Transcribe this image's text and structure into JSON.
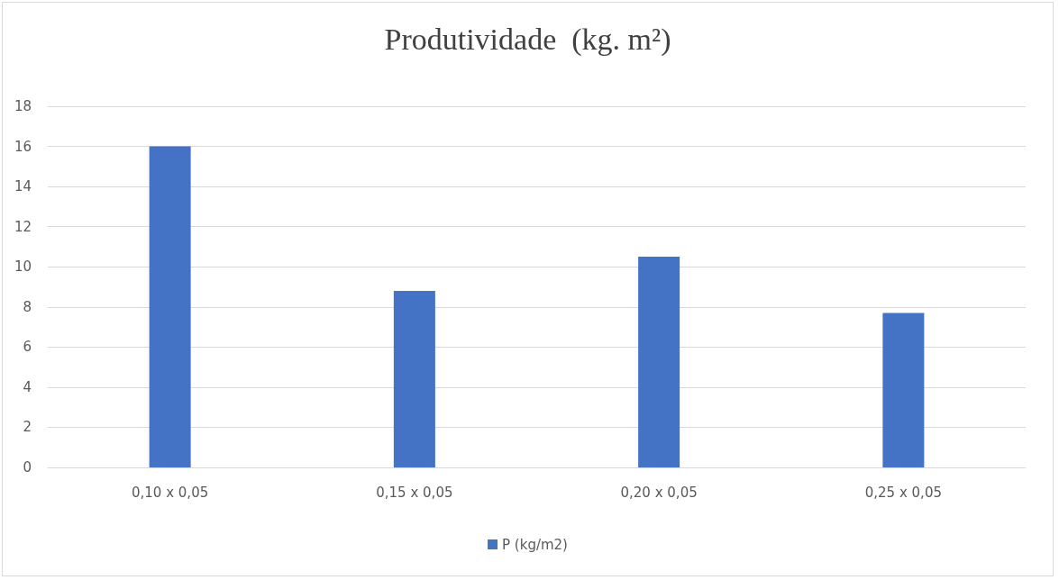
{
  "chart_data": {
    "type": "bar",
    "title": "Produtividade  (kg. m²)",
    "categories": [
      "0,10 x 0,05",
      "0,15 x 0,05",
      "0,20 x 0,05",
      "0,25 x 0,05"
    ],
    "series": [
      {
        "name": "P (kg/m2)",
        "color": "#4472c4",
        "values": [
          16,
          8.8,
          10.5,
          7.7
        ]
      }
    ],
    "ylim": [
      0,
      18
    ],
    "yticks": [
      0,
      2,
      4,
      6,
      8,
      10,
      12,
      14,
      16,
      18
    ],
    "grid": "y",
    "legend": "bottom"
  }
}
